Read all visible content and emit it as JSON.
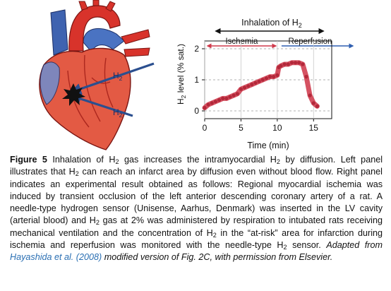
{
  "heart_illustration": {
    "arrow_label_top": "H",
    "arrow_label_top_sub": "2",
    "arrow_label_bottom": "H",
    "arrow_label_bottom_sub": "2"
  },
  "chart_data": {
    "type": "line",
    "xlabel": "Time (min)",
    "ylabel": "H",
    "ylabel_sub": "2",
    "ylabel_suffix": " level (% sat.)",
    "xlim": [
      0,
      17.5
    ],
    "ylim": [
      -0.25,
      2.25
    ],
    "xticks": [
      "0",
      "5",
      "10",
      "15"
    ],
    "yticks": [
      "0",
      "1",
      "2"
    ],
    "annotations": {
      "inhalation": "Inhalation of H",
      "inhalation_sub": "2",
      "ischemia": "Ischemia",
      "reperfusion": "Reperfusion"
    },
    "phases": {
      "inhalation": [
        -0.2,
        17.5
      ],
      "ischemia": [
        0,
        10.2
      ],
      "reperfusion": [
        10.2,
        17.5
      ]
    },
    "series": [
      {
        "x": [
          0,
          0.5,
          1,
          1.5,
          2,
          2.5,
          3,
          3.5,
          4,
          4.5,
          5,
          5.5,
          6,
          6.5,
          7,
          7.5,
          8,
          8.5,
          9,
          9.5,
          10,
          10.2,
          10.5,
          11,
          11.5,
          12,
          12.5,
          13,
          13.5,
          14,
          14.5,
          15,
          15.5
        ],
        "values": [
          0.1,
          0.2,
          0.25,
          0.3,
          0.35,
          0.4,
          0.4,
          0.45,
          0.5,
          0.55,
          0.7,
          0.75,
          0.8,
          0.85,
          0.9,
          0.95,
          1.0,
          1.05,
          1.1,
          1.1,
          1.15,
          1.4,
          1.45,
          1.5,
          1.5,
          1.55,
          1.55,
          1.55,
          1.5,
          1.1,
          0.5,
          0.25,
          0.15
        ]
      }
    ],
    "line_color": "#cf3a4c",
    "ischemia_color": "#cf3a4c",
    "reperfusion_color": "#2f5fb0"
  },
  "caption": {
    "label": "Figure 5",
    "text": [
      "  Inhalation of H",
      "2",
      " gas increases the intramyocardial H",
      "2",
      " by diffusion. Left panel illustrates that H",
      "2",
      " can reach an infarct area by diffusion even without blood flow. Right panel indicates an experimental result obtained as follows: Regional myocardial ischemia was induced by transient occlusion of the left anterior descending coronary artery of a rat. A needle-type hydrogen sensor (Unisense, Aarhus, Denmark) was inserted in the LV cavity (arterial blood) and H",
      "2",
      " gas at 2% was administered by respiration to intubated rats receiving mechanical ventilation and the concentration of H",
      "2",
      " in the “at-risk” area for infarction during ischemia and reperfusion was monitored with the needle-type H",
      "2",
      " sensor. "
    ],
    "adapted_from": "Adapted from",
    "reference": "Hayashida et al. (2008)",
    "suffix": " modified version of Fig. 2C, with permission from Elsevier."
  }
}
